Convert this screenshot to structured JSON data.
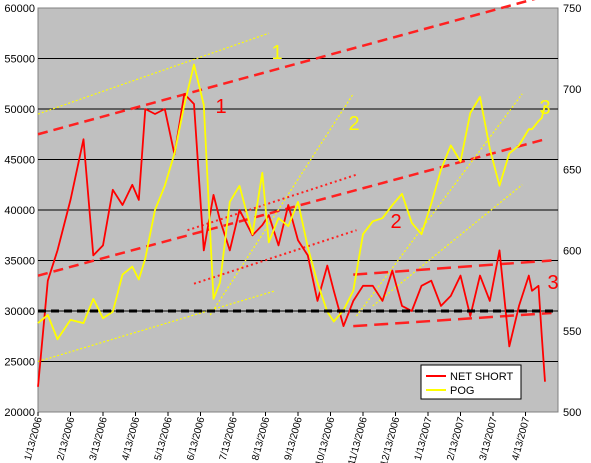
{
  "chart_data": {
    "type": "line",
    "x_tick_labels": [
      "1/13/2006",
      "2/13/2006",
      "3/13/2006",
      "4/13/2006",
      "5/13/2006",
      "6/13/2006",
      "7/13/2006",
      "8/13/2006",
      "9/13/2006",
      "10/13/2006",
      "11/13/2006",
      "12/13/2006",
      "1/13/2007",
      "2/13/2007",
      "3/13/2007",
      "4/13/2007"
    ],
    "y_left": {
      "min": 20000,
      "max": 60000,
      "step": 5000,
      "ticks": [
        "20000",
        "25000",
        "30000",
        "35000",
        "40000",
        "45000",
        "50000",
        "55000",
        "60000"
      ]
    },
    "y_right": {
      "min": 500,
      "max": 750,
      "step": 50,
      "ticks": [
        "500",
        "550",
        "600",
        "650",
        "700",
        "750"
      ]
    },
    "grid": "horizontal",
    "plot_background": "#c0c0c0",
    "series": [
      {
        "name": "NET SHORT",
        "axis": "left",
        "color": "#ff0000",
        "x": [
          0,
          0.3,
          0.6,
          1.0,
          1.4,
          1.7,
          2.0,
          2.3,
          2.6,
          2.9,
          3.1,
          3.3,
          3.6,
          3.9,
          4.2,
          4.5,
          4.8,
          5.1,
          5.4,
          5.6,
          5.9,
          6.2,
          6.6,
          6.9,
          7.1,
          7.4,
          7.7,
          8.0,
          8.3,
          8.6,
          8.9,
          9.1,
          9.4,
          9.7,
          10.0,
          10.3,
          10.6,
          10.9,
          11.2,
          11.5,
          11.8,
          12.1,
          12.4,
          12.7,
          13.0,
          13.3,
          13.6,
          13.9,
          14.2,
          14.5,
          14.8,
          15.1,
          15.2,
          15.4,
          15.5,
          15.6
        ],
        "values": [
          22500,
          33000,
          36000,
          41000,
          47000,
          35500,
          36500,
          42000,
          40500,
          42500,
          41000,
          50000,
          49500,
          50000,
          45500,
          51500,
          50500,
          36000,
          41500,
          39000,
          36000,
          40000,
          37500,
          38500,
          39500,
          36500,
          40500,
          37000,
          35500,
          31000,
          34500,
          32000,
          28500,
          31000,
          32500,
          32500,
          31000,
          34000,
          30500,
          30000,
          32500,
          33000,
          30500,
          31500,
          33500,
          29500,
          33500,
          31000,
          36000,
          26500,
          30500,
          33500,
          32000,
          32500,
          27500,
          23000
        ]
      },
      {
        "name": "POG",
        "axis": "right",
        "color": "#ffff00",
        "x": [
          0,
          0.3,
          0.6,
          1.0,
          1.4,
          1.7,
          2.0,
          2.3,
          2.6,
          2.9,
          3.1,
          3.3,
          3.6,
          3.9,
          4.2,
          4.5,
          4.8,
          5.1,
          5.4,
          5.6,
          5.9,
          6.2,
          6.6,
          6.9,
          7.1,
          7.4,
          7.7,
          8.0,
          8.3,
          8.6,
          8.9,
          9.1,
          9.4,
          9.7,
          10.0,
          10.3,
          10.6,
          10.9,
          11.2,
          11.5,
          11.8,
          12.1,
          12.4,
          12.7,
          13.0,
          13.3,
          13.6,
          13.9,
          14.2,
          14.5,
          14.8,
          15.1,
          15.2,
          15.4,
          15.5,
          15.6
        ],
        "values": [
          555,
          560,
          545,
          557,
          555,
          570,
          558,
          562,
          585,
          590,
          582,
          595,
          625,
          640,
          660,
          690,
          715,
          690,
          570,
          580,
          630,
          640,
          610,
          648,
          605,
          620,
          615,
          630,
          602,
          580,
          562,
          556,
          563,
          575,
          610,
          618,
          620,
          628,
          635,
          617,
          610,
          629,
          650,
          665,
          655,
          685,
          695,
          663,
          640,
          660,
          665,
          675,
          675,
          680,
          682,
          690
        ]
      }
    ],
    "legend": {
      "position": "bottom-right",
      "entries": [
        "NET SHORT",
        "POG"
      ]
    },
    "annotations": [
      {
        "text": "1",
        "color": "#ffff00"
      },
      {
        "text": "2",
        "color": "#ffff00"
      },
      {
        "text": "3",
        "color": "#ffff00"
      },
      {
        "text": "1",
        "color": "#ff0000"
      },
      {
        "text": "2",
        "color": "#ff0000"
      },
      {
        "text": "3",
        "color": "#ff0000"
      }
    ],
    "reference_line": {
      "axis": "left",
      "value": 30000,
      "color": "#000000",
      "style": "dashed"
    }
  }
}
